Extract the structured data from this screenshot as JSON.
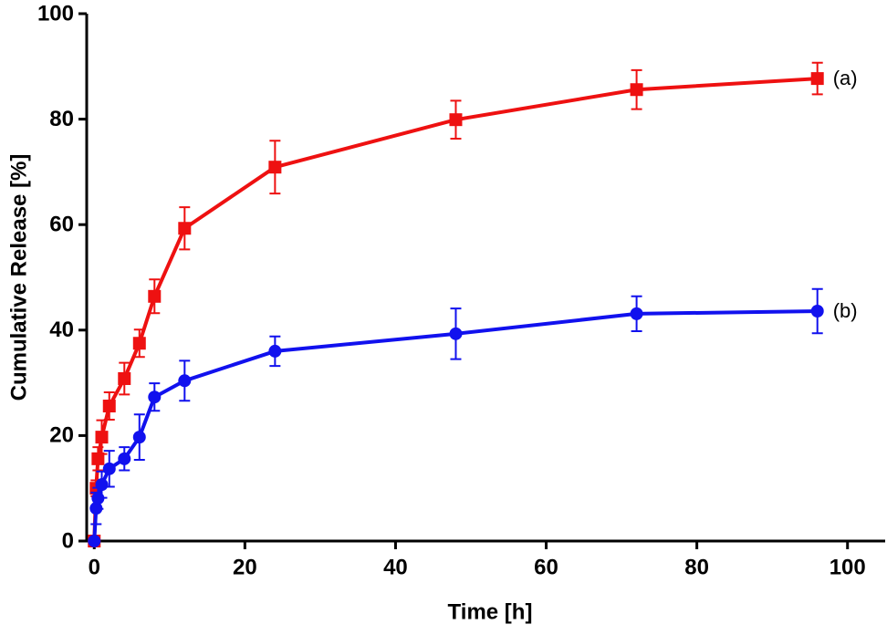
{
  "chart_data": {
    "type": "line",
    "x_label": "Time [h]",
    "y_label": "Cumulative Release [%]",
    "x": [
      0,
      0.25,
      0.5,
      1,
      2,
      4,
      6,
      8,
      12,
      24,
      48,
      72,
      96
    ],
    "series": [
      {
        "name": "(a)",
        "color": "#ee1111",
        "marker": "square",
        "values": [
          0,
          10,
          15.6,
          19.7,
          25.6,
          30.8,
          37.5,
          46.4,
          59.3,
          70.9,
          79.9,
          85.6,
          87.7
        ],
        "errors": [
          0,
          1.5,
          2.2,
          3.2,
          2.6,
          3,
          2.6,
          3.2,
          4,
          5,
          3.6,
          3.7,
          3
        ]
      },
      {
        "name": "(b)",
        "color": "#1111ee",
        "marker": "circle",
        "values": [
          0,
          6.2,
          8.1,
          10.7,
          13.7,
          15.6,
          19.7,
          27.3,
          30.4,
          36,
          39.3,
          43.1,
          43.6
        ],
        "errors": [
          0,
          3,
          2,
          2.5,
          3.4,
          2.2,
          4.3,
          2.6,
          3.8,
          2.8,
          4.8,
          3.3,
          4.2
        ]
      }
    ],
    "xlim": [
      -1,
      105
    ],
    "ylim": [
      0,
      100
    ],
    "xticks": [
      0,
      20,
      40,
      60,
      80,
      100
    ],
    "yticks": [
      0,
      20,
      40,
      60,
      80,
      100
    ]
  }
}
